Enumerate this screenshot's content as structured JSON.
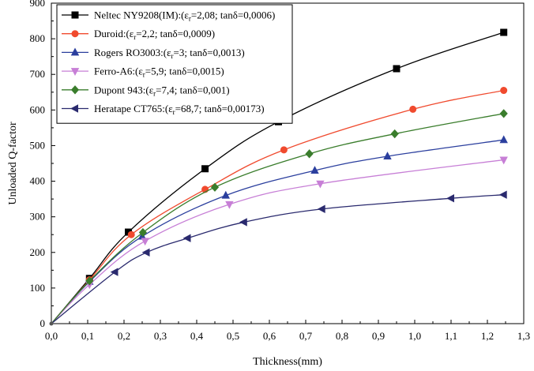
{
  "chart_data": {
    "type": "line",
    "xlabel": "Thickness(mm)",
    "ylabel": "Unloaded Q-factor",
    "xlim": [
      0,
      1.3
    ],
    "ylim": [
      0,
      900
    ],
    "x_ticks": [
      "0,0",
      "0,1",
      "0,2",
      "0,3",
      "0,4",
      "0,5",
      "0,6",
      "0,7",
      "0,8",
      "0,9",
      "1,0",
      "1,1",
      "1,2",
      "1,3"
    ],
    "x_tick_values": [
      0,
      0.1,
      0.2,
      0.3,
      0.4,
      0.5,
      0.6,
      0.7,
      0.8,
      0.9,
      1.0,
      1.1,
      1.2,
      1.3
    ],
    "y_ticks": [
      "0",
      "100",
      "200",
      "300",
      "400",
      "500",
      "600",
      "700",
      "800",
      "900"
    ],
    "y_tick_values": [
      0,
      100,
      200,
      300,
      400,
      500,
      600,
      700,
      800,
      900
    ],
    "legend_position": "top-left",
    "grid": false,
    "series": [
      {
        "label_prefix": "Neltec NY9208(IM):(ε",
        "label_sub": "r",
        "label_suffix": "=2,08; tanδ=0,0006)",
        "color": "#000000",
        "marker": "square",
        "x": [
          0,
          0.105,
          0.212,
          0.423,
          0.625,
          0.95,
          1.245
        ],
        "y": [
          0,
          127,
          257,
          435,
          567,
          716,
          818
        ]
      },
      {
        "label_prefix": "Duroid:(ε",
        "label_sub": "r",
        "label_suffix": "=2,2; tanδ=0,0009)",
        "color": "#f04a2e",
        "marker": "circle",
        "x": [
          0,
          0.105,
          0.22,
          0.423,
          0.64,
          0.995,
          1.245
        ],
        "y": [
          0,
          123,
          250,
          377,
          488,
          602,
          655
        ]
      },
      {
        "label_prefix": "Rogers RO3003:(ε",
        "label_sub": "r",
        "label_suffix": "=3; tanδ=0,0013)",
        "color": "#2b3f9e",
        "marker": "triangle-up",
        "x": [
          0,
          0.105,
          0.25,
          0.48,
          0.725,
          0.925,
          1.245
        ],
        "y": [
          0,
          118,
          245,
          360,
          430,
          470,
          516
        ]
      },
      {
        "label_prefix": "Ferro-A6:(ε",
        "label_sub": "r",
        "label_suffix": "=5,9; tanδ=0,0015)",
        "color": "#c77fd6",
        "marker": "triangle-down",
        "x": [
          0,
          0.105,
          0.258,
          0.49,
          0.74,
          1.245
        ],
        "y": [
          0,
          110,
          232,
          335,
          393,
          460
        ]
      },
      {
        "label_prefix": "Dupont 943:(ε",
        "label_sub": "r",
        "label_suffix": "=7,4; tanδ=0,001)",
        "color": "#3a7d2c",
        "marker": "diamond",
        "x": [
          0,
          0.105,
          0.252,
          0.45,
          0.71,
          0.945,
          1.245
        ],
        "y": [
          0,
          120,
          256,
          383,
          477,
          533,
          590
        ]
      },
      {
        "label_prefix": "Heratape CT765:(ε",
        "label_sub": "r",
        "label_suffix": "=68,7; tanδ=0,00173)",
        "color": "#2a2a6e",
        "marker": "triangle-left",
        "x": [
          0,
          0.175,
          0.262,
          0.375,
          0.53,
          0.745,
          1.1,
          1.245
        ],
        "y": [
          0,
          145,
          200,
          240,
          285,
          322,
          352,
          362
        ]
      }
    ]
  }
}
